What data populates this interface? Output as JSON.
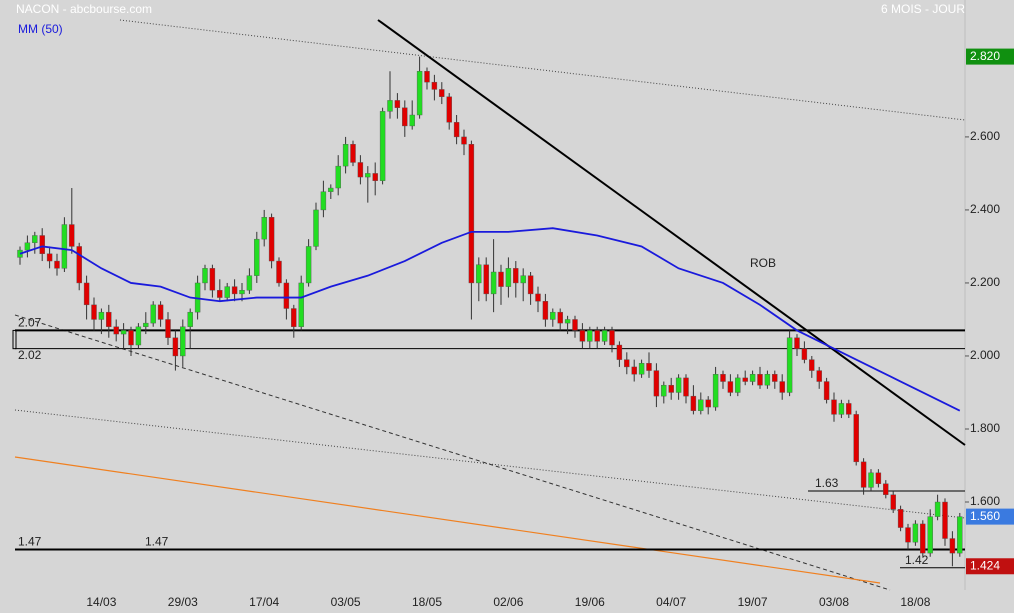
{
  "chart_data": {
    "type": "candlestick",
    "title": "NACON - abcbourse.com",
    "subtitle": "6 MOIS - JOUR",
    "annotation": "ROB",
    "categories": [
      null,
      null,
      null,
      null,
      null,
      null,
      null,
      null,
      null,
      null,
      null,
      "14/03",
      null,
      null,
      null,
      null,
      null,
      null,
      null,
      null,
      null,
      null,
      "29/03",
      null,
      null,
      null,
      null,
      null,
      null,
      null,
      null,
      null,
      null,
      "17/04",
      null,
      null,
      null,
      null,
      null,
      null,
      null,
      null,
      null,
      null,
      "03/05",
      null,
      null,
      null,
      null,
      null,
      null,
      null,
      null,
      null,
      null,
      "18/05",
      null,
      null,
      null,
      null,
      null,
      null,
      null,
      null,
      null,
      null,
      "02/06",
      null,
      null,
      null,
      null,
      null,
      null,
      null,
      null,
      null,
      null,
      "19/06",
      null,
      null,
      null,
      null,
      null,
      null,
      null,
      null,
      null,
      null,
      "04/07",
      null,
      null,
      null,
      null,
      null,
      null,
      null,
      null,
      null,
      null,
      "19/07",
      null,
      null,
      null,
      null,
      null,
      null,
      null,
      null,
      null,
      null,
      "03/08",
      null,
      null,
      null,
      null,
      null,
      null,
      null,
      null,
      null,
      null,
      "18/08",
      null,
      null,
      null,
      null,
      null,
      null
    ],
    "ohlc": [
      [
        2.27,
        2.3,
        2.25,
        2.29
      ],
      [
        2.29,
        2.33,
        2.27,
        2.31
      ],
      [
        2.31,
        2.34,
        2.28,
        2.33
      ],
      [
        2.33,
        2.35,
        2.26,
        2.28
      ],
      [
        2.28,
        2.3,
        2.24,
        2.26
      ],
      [
        2.26,
        2.28,
        2.22,
        2.24
      ],
      [
        2.24,
        2.38,
        2.23,
        2.36
      ],
      [
        2.36,
        2.46,
        2.28,
        2.3
      ],
      [
        2.3,
        2.31,
        2.18,
        2.2
      ],
      [
        2.2,
        2.22,
        2.1,
        2.14
      ],
      [
        2.14,
        2.16,
        2.07,
        2.1
      ],
      [
        2.1,
        2.13,
        2.06,
        2.12
      ],
      [
        2.12,
        2.14,
        2.05,
        2.08
      ],
      [
        2.08,
        2.1,
        2.04,
        2.06
      ],
      [
        2.06,
        2.09,
        2.02,
        2.07
      ],
      [
        2.07,
        2.08,
        2.0,
        2.03
      ],
      [
        2.03,
        2.09,
        2.02,
        2.08
      ],
      [
        2.08,
        2.12,
        2.06,
        2.09
      ],
      [
        2.09,
        2.15,
        2.08,
        2.14
      ],
      [
        2.14,
        2.15,
        2.08,
        2.1
      ],
      [
        2.1,
        2.12,
        2.03,
        2.05
      ],
      [
        2.05,
        2.07,
        1.96,
        2.0
      ],
      [
        2.0,
        2.1,
        1.97,
        2.08
      ],
      [
        2.08,
        2.13,
        2.02,
        2.12
      ],
      [
        2.12,
        2.22,
        2.1,
        2.2
      ],
      [
        2.2,
        2.25,
        2.18,
        2.24
      ],
      [
        2.24,
        2.25,
        2.16,
        2.18
      ],
      [
        2.18,
        2.21,
        2.15,
        2.16
      ],
      [
        2.16,
        2.2,
        2.15,
        2.19
      ],
      [
        2.19,
        2.21,
        2.15,
        2.17
      ],
      [
        2.17,
        2.2,
        2.15,
        2.18
      ],
      [
        2.18,
        2.24,
        2.17,
        2.22
      ],
      [
        2.22,
        2.34,
        2.2,
        2.32
      ],
      [
        2.32,
        2.4,
        2.3,
        2.38
      ],
      [
        2.38,
        2.39,
        2.24,
        2.26
      ],
      [
        2.26,
        2.27,
        2.19,
        2.2
      ],
      [
        2.2,
        2.21,
        2.1,
        2.13
      ],
      [
        2.13,
        2.14,
        2.05,
        2.08
      ],
      [
        2.08,
        2.22,
        2.07,
        2.2
      ],
      [
        2.2,
        2.32,
        2.19,
        2.3
      ],
      [
        2.3,
        2.42,
        2.29,
        2.4
      ],
      [
        2.4,
        2.48,
        2.38,
        2.45
      ],
      [
        2.45,
        2.47,
        2.43,
        2.46
      ],
      [
        2.46,
        2.55,
        2.44,
        2.52
      ],
      [
        2.52,
        2.6,
        2.5,
        2.58
      ],
      [
        2.58,
        2.59,
        2.52,
        2.53
      ],
      [
        2.53,
        2.55,
        2.47,
        2.49
      ],
      [
        2.49,
        2.52,
        2.42,
        2.5
      ],
      [
        2.5,
        2.53,
        2.44,
        2.48
      ],
      [
        2.48,
        2.68,
        2.47,
        2.67
      ],
      [
        2.67,
        2.78,
        2.65,
        2.7
      ],
      [
        2.7,
        2.72,
        2.65,
        2.68
      ],
      [
        2.68,
        2.7,
        2.6,
        2.63
      ],
      [
        2.63,
        2.7,
        2.62,
        2.66
      ],
      [
        2.66,
        2.82,
        2.65,
        2.78
      ],
      [
        2.78,
        2.79,
        2.73,
        2.75
      ],
      [
        2.75,
        2.77,
        2.7,
        2.73
      ],
      [
        2.73,
        2.75,
        2.69,
        2.71
      ],
      [
        2.71,
        2.72,
        2.62,
        2.64
      ],
      [
        2.64,
        2.66,
        2.58,
        2.6
      ],
      [
        2.6,
        2.62,
        2.55,
        2.58
      ],
      [
        2.58,
        2.59,
        2.1,
        2.2
      ],
      [
        2.2,
        2.27,
        2.15,
        2.25
      ],
      [
        2.25,
        2.27,
        2.15,
        2.17
      ],
      [
        2.17,
        2.32,
        2.12,
        2.23
      ],
      [
        2.23,
        2.25,
        2.14,
        2.19
      ],
      [
        2.19,
        2.27,
        2.16,
        2.24
      ],
      [
        2.24,
        2.26,
        2.16,
        2.2
      ],
      [
        2.2,
        2.24,
        2.15,
        2.22
      ],
      [
        2.22,
        2.23,
        2.14,
        2.17
      ],
      [
        2.17,
        2.19,
        2.12,
        2.15
      ],
      [
        2.15,
        2.17,
        2.08,
        2.1
      ],
      [
        2.1,
        2.13,
        2.08,
        2.12
      ],
      [
        2.12,
        2.13,
        2.07,
        2.09
      ],
      [
        2.09,
        2.11,
        2.06,
        2.1
      ],
      [
        2.1,
        2.11,
        2.05,
        2.07
      ],
      [
        2.07,
        2.09,
        2.02,
        2.04
      ],
      [
        2.04,
        2.08,
        2.02,
        2.07
      ],
      [
        2.07,
        2.08,
        2.02,
        2.04
      ],
      [
        2.04,
        2.08,
        2.03,
        2.07
      ],
      [
        2.07,
        2.08,
        2.01,
        2.03
      ],
      [
        2.03,
        2.04,
        1.97,
        1.99
      ],
      [
        1.99,
        2.01,
        1.95,
        1.97
      ],
      [
        1.97,
        1.99,
        1.93,
        1.95
      ],
      [
        1.95,
        1.99,
        1.94,
        1.98
      ],
      [
        1.98,
        2.01,
        1.94,
        1.96
      ],
      [
        1.96,
        1.98,
        1.86,
        1.89
      ],
      [
        1.89,
        1.93,
        1.87,
        1.92
      ],
      [
        1.92,
        1.94,
        1.88,
        1.9
      ],
      [
        1.9,
        1.95,
        1.88,
        1.94
      ],
      [
        1.94,
        1.95,
        1.87,
        1.89
      ],
      [
        1.89,
        1.92,
        1.84,
        1.85
      ],
      [
        1.85,
        1.9,
        1.84,
        1.88
      ],
      [
        1.88,
        1.89,
        1.84,
        1.86
      ],
      [
        1.86,
        1.97,
        1.85,
        1.95
      ],
      [
        1.95,
        1.96,
        1.91,
        1.93
      ],
      [
        1.93,
        1.95,
        1.89,
        1.9
      ],
      [
        1.9,
        1.95,
        1.89,
        1.94
      ],
      [
        1.94,
        1.96,
        1.92,
        1.93
      ],
      [
        1.93,
        1.96,
        1.92,
        1.95
      ],
      [
        1.95,
        1.97,
        1.91,
        1.92
      ],
      [
        1.92,
        1.96,
        1.91,
        1.95
      ],
      [
        1.95,
        1.96,
        1.91,
        1.93
      ],
      [
        1.93,
        1.95,
        1.88,
        1.9
      ],
      [
        1.9,
        2.07,
        1.89,
        2.05
      ],
      [
        2.05,
        2.06,
        2.0,
        2.02
      ],
      [
        2.02,
        2.04,
        1.98,
        1.99
      ],
      [
        1.99,
        2.0,
        1.94,
        1.96
      ],
      [
        1.96,
        1.97,
        1.91,
        1.93
      ],
      [
        1.93,
        1.94,
        1.87,
        1.88
      ],
      [
        1.88,
        1.9,
        1.82,
        1.84
      ],
      [
        1.84,
        1.88,
        1.83,
        1.87
      ],
      [
        1.87,
        1.88,
        1.83,
        1.84
      ],
      [
        1.84,
        1.85,
        1.7,
        1.71
      ],
      [
        1.71,
        1.72,
        1.62,
        1.64
      ],
      [
        1.64,
        1.69,
        1.63,
        1.68
      ],
      [
        1.68,
        1.69,
        1.64,
        1.65
      ],
      [
        1.65,
        1.66,
        1.61,
        1.62
      ],
      [
        1.62,
        1.63,
        1.57,
        1.58
      ],
      [
        1.58,
        1.59,
        1.52,
        1.53
      ],
      [
        1.53,
        1.54,
        1.47,
        1.49
      ],
      [
        1.49,
        1.55,
        1.48,
        1.54
      ],
      [
        1.54,
        1.55,
        1.45,
        1.46
      ],
      [
        1.46,
        1.58,
        1.45,
        1.56
      ],
      [
        1.56,
        1.62,
        1.55,
        1.6
      ],
      [
        1.6,
        1.61,
        1.48,
        1.5
      ],
      [
        1.5,
        1.52,
        1.424,
        1.46
      ],
      [
        1.46,
        1.57,
        1.45,
        1.56
      ]
    ],
    "up_color": "#22dd22",
    "down_color": "#e00000",
    "ma": {
      "name": "MM (50)",
      "color": "#1a1adc",
      "x": [
        0,
        3,
        7,
        11,
        15,
        19,
        23,
        27,
        32,
        38,
        42,
        47,
        52,
        57,
        61,
        66,
        72,
        78,
        84,
        89,
        95,
        100,
        105,
        111,
        116,
        122,
        127
      ],
      "values": [
        2.28,
        2.3,
        2.29,
        2.24,
        2.2,
        2.19,
        2.16,
        2.15,
        2.16,
        2.16,
        2.19,
        2.22,
        2.26,
        2.31,
        2.34,
        2.34,
        2.35,
        2.33,
        2.3,
        2.24,
        2.2,
        2.14,
        2.07,
        2.01,
        1.96,
        1.9,
        1.85
      ]
    },
    "levels": [
      2.07,
      2.02,
      1.63,
      1.47,
      1.42
    ],
    "price_labels": [
      {
        "value": 2.82,
        "label": "2.820",
        "color": "#109010"
      },
      {
        "value": 1.56,
        "label": "1.560",
        "color": "#3a7ae0"
      },
      {
        "value": 1.424,
        "label": "1.424",
        "color": "#c01010"
      }
    ],
    "ylim": [
      1.359,
      2.975
    ],
    "yticks": [
      {
        "value": 1.6,
        "label": "1.600"
      },
      {
        "value": 1.8,
        "label": "1.800"
      },
      {
        "value": 2.0,
        "label": "2.000"
      },
      {
        "value": 2.2,
        "label": "2.200"
      },
      {
        "value": 2.4,
        "label": "2.400"
      },
      {
        "value": 2.6,
        "label": "2.600"
      }
    ]
  }
}
